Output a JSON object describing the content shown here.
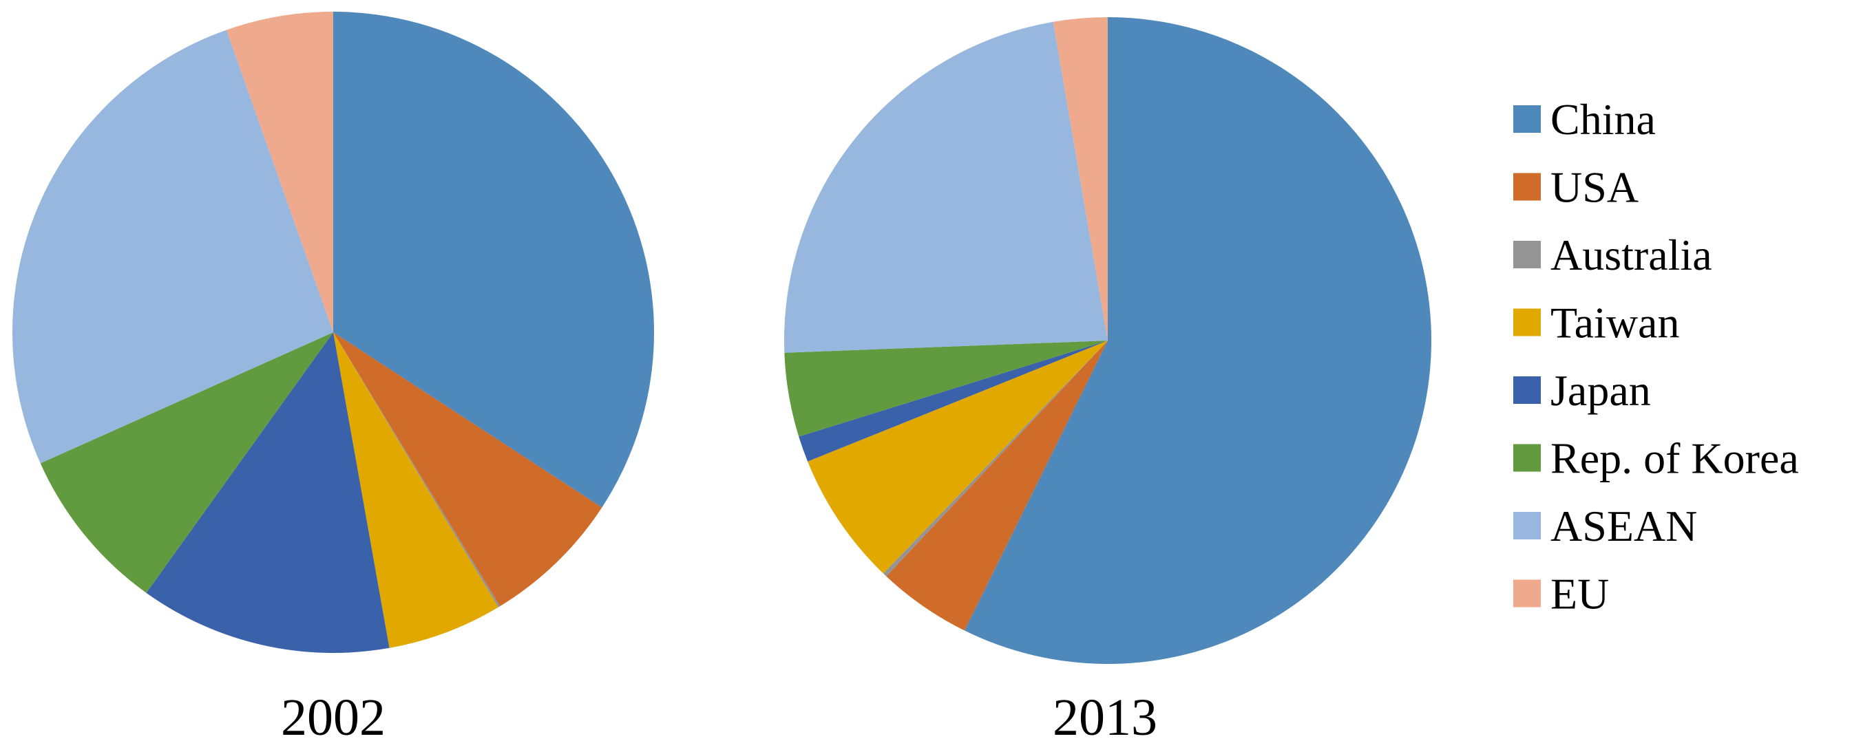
{
  "chart_data": [
    {
      "type": "pie",
      "title": "2002",
      "legend_position": "right",
      "categories": [
        "China",
        "USA",
        "Australia",
        "Taiwan",
        "Japan",
        "Rep. of Korea",
        "ASEAN",
        "EU"
      ],
      "colors": [
        "#4F89BC",
        "#D06C2A",
        "#949494",
        "#E1A800",
        "#3A62AA",
        "#629A3F",
        "#98B7DE",
        "#EFA98D"
      ],
      "values": [
        34.2,
        7.1,
        0.1,
        5.8,
        12.7,
        8.4,
        26.3,
        5.4
      ]
    },
    {
      "type": "pie",
      "title": "2013",
      "legend_position": "right",
      "categories": [
        "China",
        "USA",
        "Australia",
        "Taiwan",
        "Japan",
        "Rep. of Korea",
        "ASEAN",
        "EU"
      ],
      "colors": [
        "#4F89BC",
        "#D06C2A",
        "#949494",
        "#E1A800",
        "#3A62AA",
        "#629A3F",
        "#98B7DE",
        "#EFA98D"
      ],
      "values": [
        57.3,
        4.7,
        0.2,
        6.7,
        1.3,
        4.2,
        22.9,
        2.7
      ]
    }
  ]
}
